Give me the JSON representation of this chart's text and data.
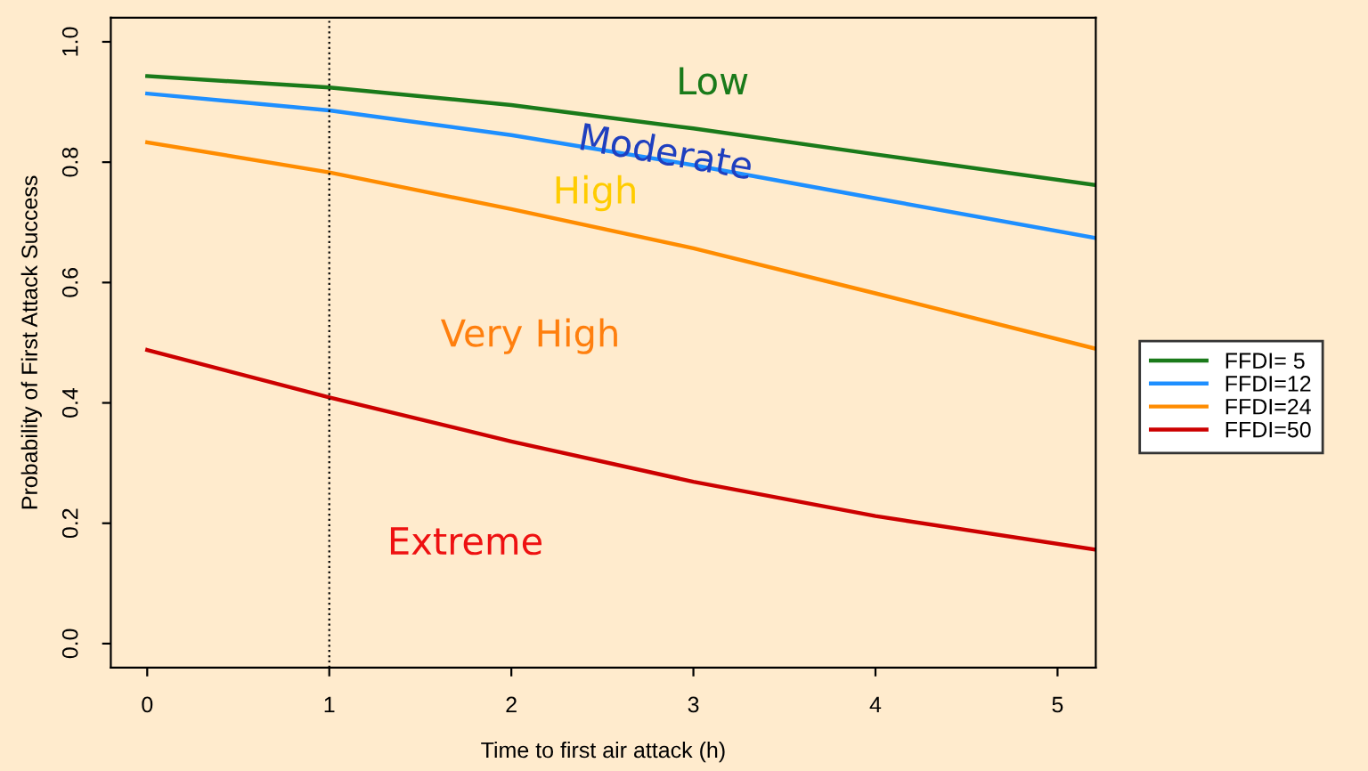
{
  "chart_data": {
    "type": "line",
    "xlabel": "Time to first air attack (h)",
    "ylabel": "Probability of First Attack Success",
    "x": [
      0,
      1,
      2,
      3,
      4,
      5.21
    ],
    "series": [
      {
        "name": "FFDI= 5",
        "color": "#1a7a1a",
        "values": [
          0.943,
          0.924,
          0.895,
          0.856,
          0.813,
          0.762
        ]
      },
      {
        "name": "FFDI=12",
        "color": "#1e8fff",
        "values": [
          0.914,
          0.886,
          0.845,
          0.795,
          0.74,
          0.674
        ]
      },
      {
        "name": "FFDI=24",
        "color": "#ff8c00",
        "values": [
          0.833,
          0.783,
          0.722,
          0.657,
          0.582,
          0.49
        ]
      },
      {
        "name": "FFDI=50",
        "color": "#cc0000",
        "values": [
          0.488,
          0.409,
          0.336,
          0.269,
          0.212,
          0.156
        ]
      }
    ],
    "xlim": [
      -0.2,
      5.21
    ],
    "ylim": [
      -0.04,
      1.04
    ],
    "xticks": [
      0,
      1,
      2,
      3,
      4,
      5
    ],
    "yticks": [
      {
        "value": 0,
        "label": "0.0"
      },
      0.2,
      0.4,
      0.6,
      0.8,
      {
        "value": 1,
        "label": "1.0"
      }
    ],
    "ref_lines": [
      {
        "axis": "x",
        "value": 1,
        "color": "#000000",
        "line_style": "dotted"
      }
    ],
    "annotations": [
      "Low",
      "Moderate",
      "High",
      "Very High",
      "Extreme"
    ],
    "grid": false,
    "legend": "right",
    "marker": "none",
    "line_style": "solid"
  }
}
